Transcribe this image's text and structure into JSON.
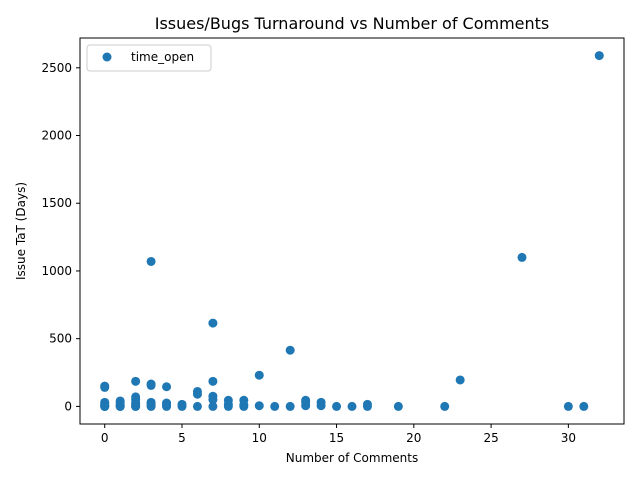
{
  "chart_data": {
    "type": "scatter",
    "title": "Issues/Bugs Turnaround vs Number of Comments",
    "xlabel": "Number of Comments",
    "ylabel": "Issue TaT (Days)",
    "xlim": [
      -1.6,
      33.6
    ],
    "ylim": [
      -130,
      2720
    ],
    "xticks": [
      0,
      5,
      10,
      15,
      20,
      25,
      30
    ],
    "yticks": [
      0,
      500,
      1000,
      1500,
      2000,
      2500
    ],
    "grid": false,
    "legend_position": "top-left",
    "color": "#1f77b4",
    "series": [
      {
        "name": "time_open",
        "points": [
          [
            0,
            150
          ],
          [
            0,
            140
          ],
          [
            0,
            30
          ],
          [
            0,
            20
          ],
          [
            0,
            10
          ],
          [
            0,
            5
          ],
          [
            0,
            0
          ],
          [
            0,
            0
          ],
          [
            0,
            0
          ],
          [
            1,
            40
          ],
          [
            1,
            30
          ],
          [
            1,
            15
          ],
          [
            1,
            5
          ],
          [
            1,
            0
          ],
          [
            1,
            0
          ],
          [
            2,
            185
          ],
          [
            2,
            70
          ],
          [
            2,
            50
          ],
          [
            2,
            25
          ],
          [
            2,
            10
          ],
          [
            2,
            0
          ],
          [
            2,
            0
          ],
          [
            3,
            1070
          ],
          [
            3,
            165
          ],
          [
            3,
            155
          ],
          [
            3,
            30
          ],
          [
            3,
            20
          ],
          [
            3,
            5
          ],
          [
            3,
            0
          ],
          [
            4,
            145
          ],
          [
            4,
            25
          ],
          [
            4,
            15
          ],
          [
            4,
            5
          ],
          [
            4,
            0
          ],
          [
            5,
            15
          ],
          [
            5,
            0
          ],
          [
            6,
            110
          ],
          [
            6,
            90
          ],
          [
            6,
            0
          ],
          [
            7,
            615
          ],
          [
            7,
            185
          ],
          [
            7,
            75
          ],
          [
            7,
            50
          ],
          [
            7,
            0
          ],
          [
            8,
            45
          ],
          [
            8,
            15
          ],
          [
            8,
            0
          ],
          [
            9,
            45
          ],
          [
            9,
            10
          ],
          [
            9,
            0
          ],
          [
            10,
            230
          ],
          [
            10,
            5
          ],
          [
            11,
            0
          ],
          [
            12,
            415
          ],
          [
            12,
            0
          ],
          [
            13,
            45
          ],
          [
            13,
            30
          ],
          [
            13,
            5
          ],
          [
            14,
            30
          ],
          [
            14,
            5
          ],
          [
            15,
            0
          ],
          [
            16,
            0
          ],
          [
            17,
            15
          ],
          [
            17,
            0
          ],
          [
            19,
            0
          ],
          [
            22,
            0
          ],
          [
            23,
            195
          ],
          [
            27,
            1100
          ],
          [
            30,
            0
          ],
          [
            31,
            0
          ],
          [
            32,
            2590
          ]
        ]
      }
    ]
  }
}
